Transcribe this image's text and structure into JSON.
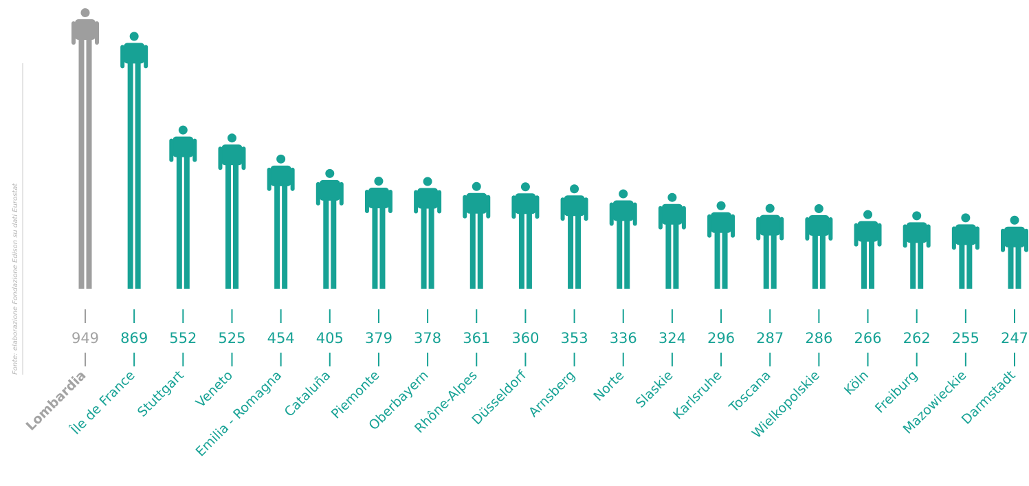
{
  "source_note": "Fonte: elaborazione Fondazione Edison su dati Eurostat",
  "colors": {
    "highlight": "#9e9e9e",
    "series": "#17a295",
    "highlight_text": "#a3a3a3"
  },
  "chart_data": {
    "type": "bar",
    "mark": "pictogram-person",
    "title": "",
    "xlabel": "",
    "ylabel": "",
    "ylim": [
      0,
      949
    ],
    "grid": false,
    "legend": "none",
    "highlight_index": 0,
    "categories": [
      "Lombardia",
      "Île de France",
      "Stuttgart",
      "Veneto",
      "Emilia - Romagna",
      "Cataluña",
      "Piemonte",
      "Oberbayern",
      "Rhône-Alpes",
      "Düsseldorf",
      "Arnsberg",
      "Norte",
      "Slaskie",
      "Karlsruhe",
      "Toscana",
      "Wielkopolskie",
      "Köln",
      "Freiburg",
      "Mazowieckie",
      "Darmstadt"
    ],
    "values": [
      949,
      869,
      552,
      525,
      454,
      405,
      379,
      378,
      361,
      360,
      353,
      336,
      324,
      296,
      287,
      286,
      266,
      262,
      255,
      247
    ]
  }
}
